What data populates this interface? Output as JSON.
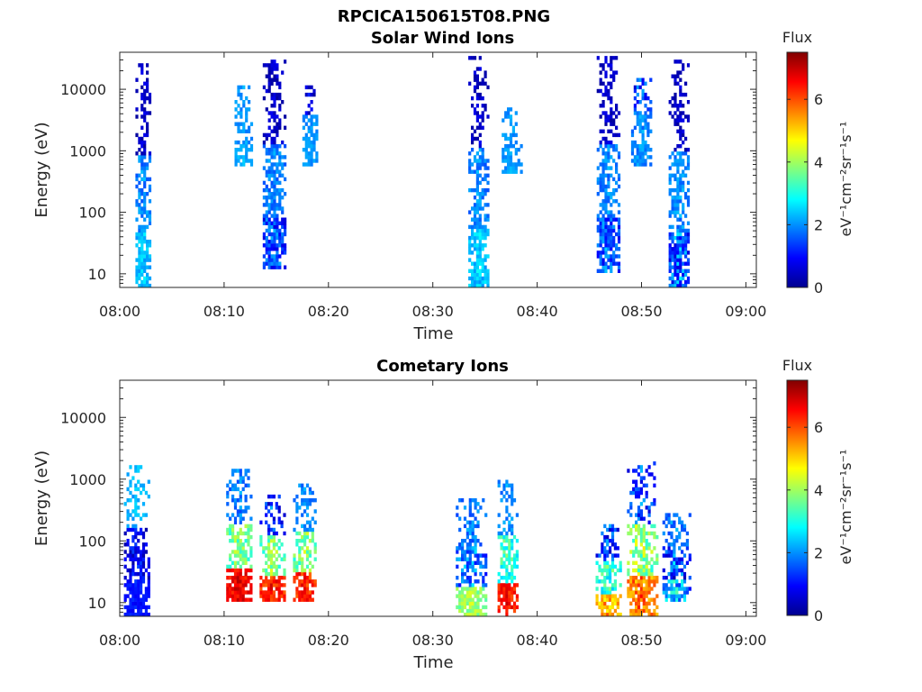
{
  "figure_title": "RPCICA150615T08.PNG",
  "colormap": [
    "#00008f",
    "#0000ff",
    "#0080ff",
    "#00ffff",
    "#80ff80",
    "#ffff00",
    "#ff8000",
    "#ff0000",
    "#800000"
  ],
  "chart_data": [
    {
      "type": "heatmap",
      "title": "Solar Wind Ions",
      "xlabel": "Time",
      "ylabel": "Energy (eV)",
      "xlim": [
        "08:00",
        "09:01"
      ],
      "x_ticks": [
        "08:00",
        "08:10",
        "08:20",
        "08:30",
        "08:40",
        "08:50",
        "09:00"
      ],
      "y_scale": "log",
      "ylim": [
        6,
        40000
      ],
      "y_ticks": [
        "10",
        "100",
        "1000",
        "10000"
      ],
      "colorbar": {
        "title": "Flux",
        "label": "eV⁻¹cm⁻²sr⁻¹s⁻¹",
        "range": [
          0,
          7.5
        ],
        "ticks": [
          "0",
          "2",
          "4",
          "6"
        ]
      },
      "grid": false,
      "bursts": [
        {
          "time_min": [
            1.5,
            3.0
          ],
          "energy_eV": [
            6,
            25000
          ],
          "flux_low": [
            2.0,
            2.8
          ],
          "flux_mid": [
            1.5,
            2.5
          ],
          "flux_high": [
            0.1,
            0.9
          ]
        },
        {
          "time_min": [
            11.0,
            12.6
          ],
          "energy_eV": [
            600,
            12000
          ],
          "flux_low": [
            2.0,
            2.5
          ],
          "flux_mid": [
            1.8,
            2.4
          ],
          "flux_high": [
            1.8,
            2.4
          ]
        },
        {
          "time_min": [
            13.7,
            15.8
          ],
          "energy_eV": [
            12,
            30000
          ],
          "flux_low": [
            0.6,
            2.6
          ],
          "flux_mid": [
            1.5,
            2.4
          ],
          "flux_high": [
            0.1,
            0.9
          ]
        },
        {
          "time_min": [
            17.5,
            19.0
          ],
          "energy_eV": [
            600,
            12000
          ],
          "flux_low": [
            1.8,
            2.4
          ],
          "flux_mid": [
            1.8,
            2.4
          ],
          "flux_high": [
            0.1,
            1.4
          ]
        },
        {
          "time_min": [
            33.4,
            35.3
          ],
          "energy_eV": [
            6,
            35000
          ],
          "flux_low": [
            2.0,
            3.0
          ],
          "flux_mid": [
            1.5,
            2.5
          ],
          "flux_high": [
            0.1,
            0.9
          ]
        },
        {
          "time_min": [
            36.6,
            38.4
          ],
          "energy_eV": [
            400,
            6000
          ],
          "flux_low": [
            1.8,
            2.4
          ],
          "flux_mid": [
            1.8,
            2.4
          ],
          "flux_high": [
            1.8,
            2.4
          ]
        },
        {
          "time_min": [
            45.7,
            47.8
          ],
          "energy_eV": [
            10,
            35000
          ],
          "flux_low": [
            0.8,
            2.6
          ],
          "flux_mid": [
            1.5,
            2.4
          ],
          "flux_high": [
            0.1,
            0.9
          ]
        },
        {
          "time_min": [
            49.0,
            51.0
          ],
          "energy_eV": [
            600,
            15000
          ],
          "flux_low": [
            1.6,
            2.4
          ],
          "flux_mid": [
            1.6,
            2.4
          ],
          "flux_high": [
            0.5,
            2.4
          ]
        },
        {
          "time_min": [
            52.6,
            54.6
          ],
          "energy_eV": [
            6,
            30000
          ],
          "flux_low": [
            0.6,
            3.0
          ],
          "flux_mid": [
            1.5,
            2.5
          ],
          "flux_high": [
            0.1,
            0.9
          ]
        }
      ]
    },
    {
      "type": "heatmap",
      "title": "Cometary Ions",
      "xlabel": "Time",
      "ylabel": "Energy (eV)",
      "xlim": [
        "08:00",
        "09:01"
      ],
      "x_ticks": [
        "08:00",
        "08:10",
        "08:20",
        "08:30",
        "08:40",
        "08:50",
        "09:00"
      ],
      "y_scale": "log",
      "ylim": [
        6,
        40000
      ],
      "y_ticks": [
        "10",
        "100",
        "1000",
        "10000"
      ],
      "colorbar": {
        "title": "Flux",
        "label": "eV⁻¹cm⁻²sr⁻¹s⁻¹",
        "range": [
          0,
          7.5
        ],
        "ticks": [
          "0",
          "2",
          "4",
          "6"
        ]
      },
      "grid": false,
      "bursts": [
        {
          "time_min": [
            0.4,
            2.8
          ],
          "energy_eV": [
            6,
            1600
          ],
          "flux_low": [
            0.8,
            1.4
          ],
          "flux_mid": [
            0.2,
            1.6
          ],
          "flux_high": [
            2.0,
            2.6
          ]
        },
        {
          "time_min": [
            10.2,
            12.6
          ],
          "energy_eV": [
            10,
            1400
          ],
          "flux_low": [
            6.2,
            7.2
          ],
          "flux_mid": [
            3.0,
            4.6
          ],
          "flux_high": [
            1.4,
            2.4
          ]
        },
        {
          "time_min": [
            13.4,
            15.8
          ],
          "energy_eV": [
            10,
            600
          ],
          "flux_low": [
            5.8,
            7.0
          ],
          "flux_mid": [
            3.0,
            4.6
          ],
          "flux_high": [
            0.4,
            2.4
          ]
        },
        {
          "time_min": [
            16.6,
            18.8
          ],
          "energy_eV": [
            10,
            800
          ],
          "flux_low": [
            5.8,
            7.0
          ],
          "flux_mid": [
            3.0,
            4.6
          ],
          "flux_high": [
            1.6,
            2.4
          ]
        },
        {
          "time_min": [
            32.2,
            35.0
          ],
          "energy_eV": [
            6,
            500
          ],
          "flux_low": [
            3.4,
            4.6
          ],
          "flux_mid": [
            1.0,
            3.0
          ],
          "flux_high": [
            1.4,
            2.4
          ]
        },
        {
          "time_min": [
            36.2,
            38.0
          ],
          "energy_eV": [
            6,
            1000
          ],
          "flux_low": [
            6.0,
            7.0
          ],
          "flux_mid": [
            2.5,
            4.0
          ],
          "flux_high": [
            1.6,
            2.4
          ]
        },
        {
          "time_min": [
            45.6,
            48.0
          ],
          "energy_eV": [
            6,
            200
          ],
          "flux_low": [
            4.6,
            6.2
          ],
          "flux_mid": [
            2.4,
            4.2
          ],
          "flux_high": [
            0.4,
            2.4
          ]
        },
        {
          "time_min": [
            48.6,
            51.4
          ],
          "energy_eV": [
            6,
            2000
          ],
          "flux_low": [
            5.0,
            6.6
          ],
          "flux_mid": [
            3.0,
            5.0
          ],
          "flux_high": [
            0.6,
            2.4
          ]
        },
        {
          "time_min": [
            52.0,
            54.6
          ],
          "energy_eV": [
            10,
            300
          ],
          "flux_low": [
            1.0,
            3.6
          ],
          "flux_mid": [
            0.2,
            3.0
          ],
          "flux_high": [
            1.4,
            2.4
          ]
        }
      ]
    }
  ]
}
